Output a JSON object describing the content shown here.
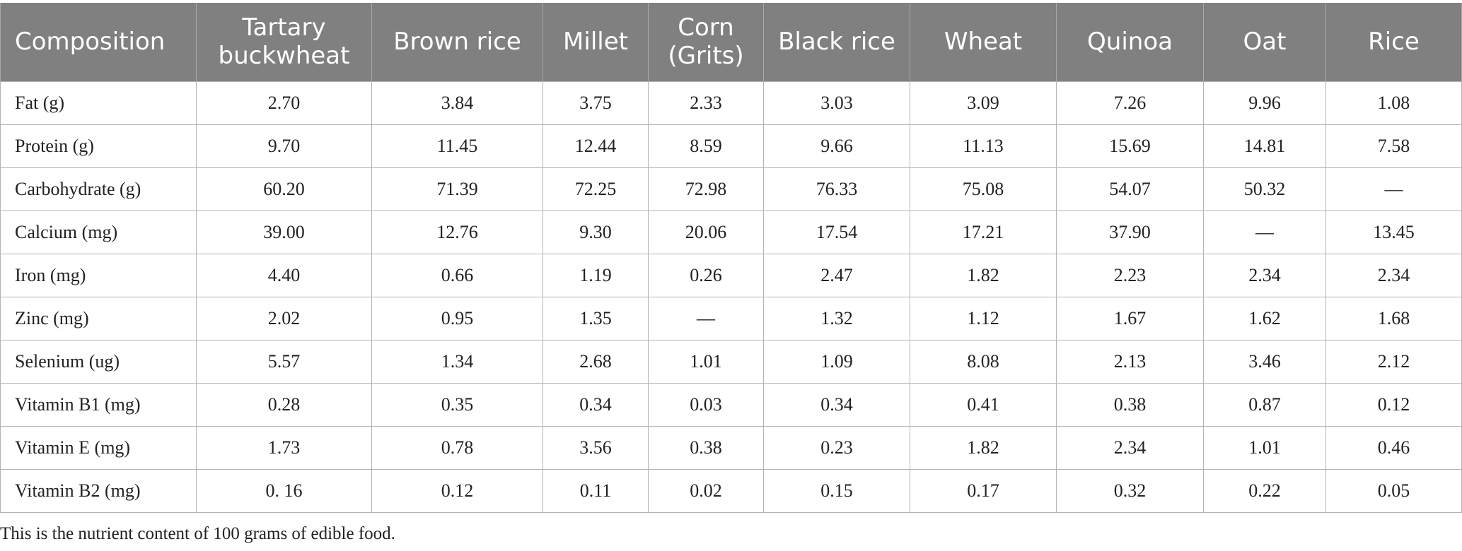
{
  "table": {
    "headers": [
      "Composition",
      "Tartary buckwheat",
      "Brown rice",
      "Millet",
      "Corn (Grits)",
      "Black rice",
      "Wheat",
      "Quinoa",
      "Oat",
      "Rice"
    ],
    "rows": [
      [
        "Fat (g)",
        "2.70",
        "3.84",
        "3.75",
        "2.33",
        "3.03",
        "3.09",
        "7.26",
        "9.96",
        "1.08"
      ],
      [
        "Protein (g)",
        "9.70",
        "11.45",
        "12.44",
        "8.59",
        "9.66",
        "11.13",
        "15.69",
        "14.81",
        "7.58"
      ],
      [
        "Carbohydrate (g)",
        "60.20",
        "71.39",
        "72.25",
        "72.98",
        "76.33",
        "75.08",
        "54.07",
        "50.32",
        "—"
      ],
      [
        "Calcium (mg)",
        "39.00",
        "12.76",
        "9.30",
        "20.06",
        "17.54",
        "17.21",
        "37.90",
        "—",
        "13.45"
      ],
      [
        "Iron (mg)",
        "4.40",
        "0.66",
        "1.19",
        "0.26",
        "2.47",
        "1.82",
        "2.23",
        "2.34",
        "2.34"
      ],
      [
        "Zinc (mg)",
        "2.02",
        "0.95",
        "1.35",
        "—",
        "1.32",
        "1.12",
        "1.67",
        "1.62",
        "1.68"
      ],
      [
        "Selenium (ug)",
        "5.57",
        "1.34",
        "2.68",
        "1.01",
        "1.09",
        "8.08",
        "2.13",
        "3.46",
        "2.12"
      ],
      [
        "Vitamin B1 (mg)",
        "0.28",
        "0.35",
        "0.34",
        "0.03",
        "0.34",
        "0.41",
        "0.38",
        "0.87",
        "0.12"
      ],
      [
        "Vitamin E (mg)",
        "1.73",
        "0.78",
        "3.56",
        "0.38",
        "0.23",
        "1.82",
        "2.34",
        "1.01",
        "0.46"
      ],
      [
        "Vitamin B2 (mg)",
        "0. 16",
        "0.12",
        "0.11",
        "0.02",
        "0.15",
        "0.17",
        "0.32",
        "0.22",
        "0.05"
      ]
    ]
  },
  "footnote": "This is the nutrient content of 100 grams of edible food.",
  "colors": {
    "header_bg": "#808080",
    "header_text": "#ffffff",
    "grid": "#b4b4b4"
  }
}
